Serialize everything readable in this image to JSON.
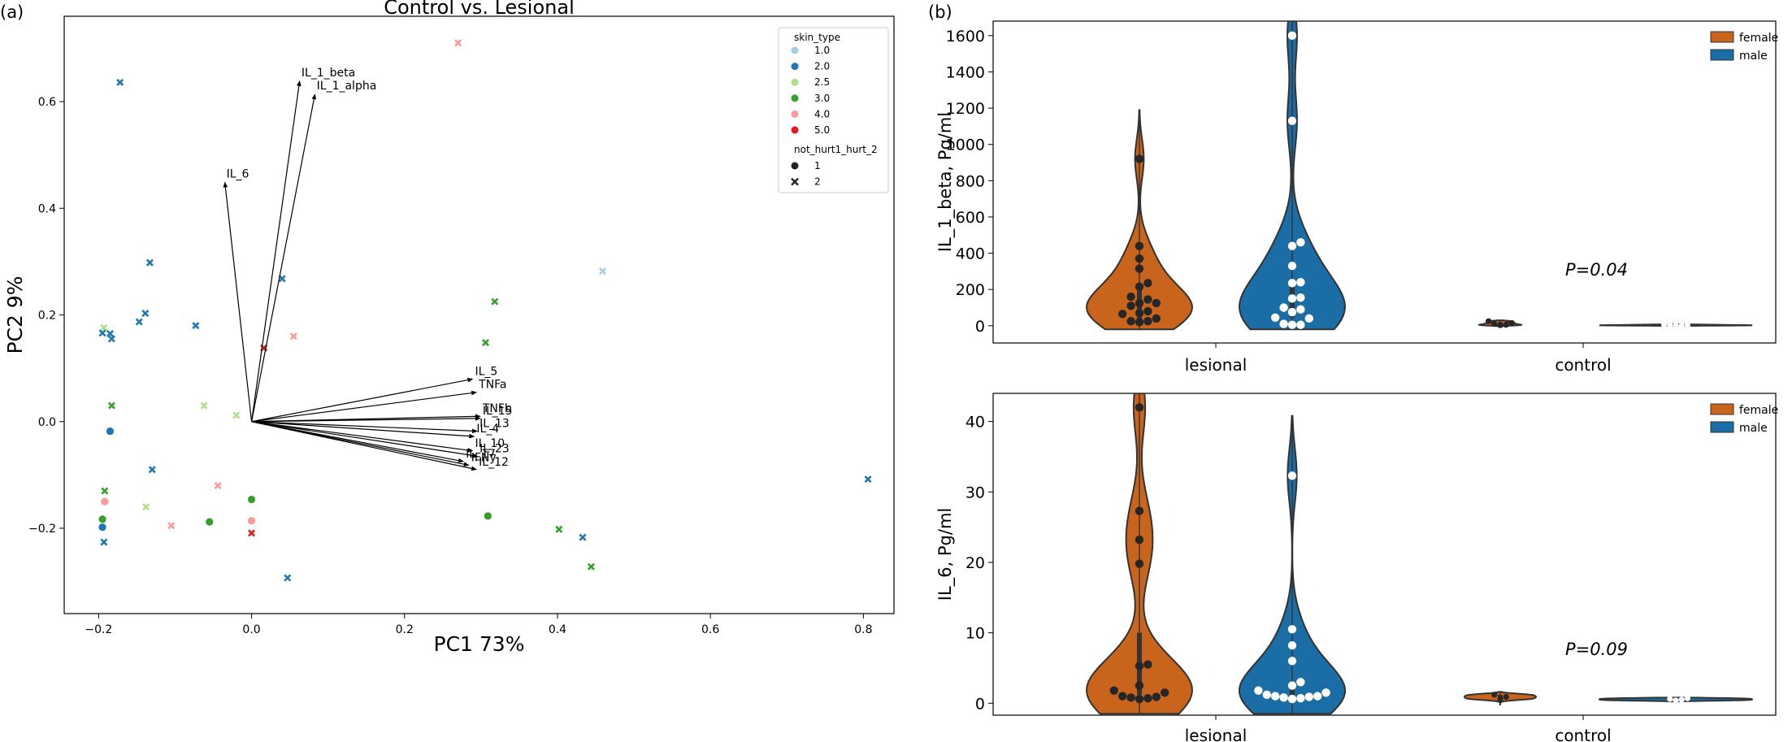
{
  "figure": {
    "panel_a_label": "(a)",
    "panel_b_label": "(b)"
  },
  "colors": {
    "skin_1.0": "#a6cee3",
    "skin_2.0": "#1f78b4",
    "skin_2.5": "#b2df8a",
    "skin_3.0": "#33a02c",
    "skin_4.0": "#fb9a99",
    "skin_5.0": "#e31a1c",
    "female": "#c8641c",
    "male": "#1b6ea5"
  },
  "chart_data": [
    {
      "type": "scatter",
      "title": "Control vs. Lesional",
      "xlabel": "PC1 73%",
      "ylabel": "PC2 9%",
      "xlim": [
        -0.245,
        0.84
      ],
      "ylim": [
        -0.36,
        0.76
      ],
      "xticks": [
        -0.2,
        0.0,
        0.2,
        0.4,
        0.6,
        0.8
      ],
      "xtick_labels": [
        "−0.2",
        "0.0",
        "0.2",
        "0.4",
        "0.6",
        "0.8"
      ],
      "yticks": [
        -0.2,
        0.0,
        0.2,
        0.4,
        0.6
      ],
      "ytick_labels": [
        "−0.2",
        "0.0",
        "0.2",
        "0.4",
        "0.6"
      ],
      "grid": false,
      "legend": {
        "placement": "top-right",
        "hue_title": "skin_type",
        "hue_items": [
          "1.0",
          "2.0",
          "2.5",
          "3.0",
          "4.0",
          "5.0"
        ],
        "style_title": "not_hurt1_hurt_2",
        "style_items": [
          {
            "label": "1",
            "marker": "circle"
          },
          {
            "label": "2",
            "marker": "x"
          }
        ]
      },
      "points": [
        {
          "x": -0.172,
          "y": 0.636,
          "skin": "2.0",
          "m": "x"
        },
        {
          "x": 0.27,
          "y": 0.71,
          "skin": "4.0",
          "m": "x"
        },
        {
          "x": -0.133,
          "y": 0.298,
          "skin": "2.0",
          "m": "x"
        },
        {
          "x": 0.04,
          "y": 0.268,
          "skin": "2.0",
          "m": "x"
        },
        {
          "x": 0.459,
          "y": 0.282,
          "skin": "1.0",
          "m": "x"
        },
        {
          "x": 0.318,
          "y": 0.225,
          "skin": "3.0",
          "m": "x"
        },
        {
          "x": -0.139,
          "y": 0.203,
          "skin": "2.0",
          "m": "x"
        },
        {
          "x": -0.147,
          "y": 0.187,
          "skin": "2.0",
          "m": "x"
        },
        {
          "x": -0.073,
          "y": 0.18,
          "skin": "2.0",
          "m": "x"
        },
        {
          "x": -0.193,
          "y": 0.176,
          "skin": "2.5",
          "m": "x"
        },
        {
          "x": -0.195,
          "y": 0.166,
          "skin": "2.0",
          "m": "x"
        },
        {
          "x": -0.185,
          "y": 0.165,
          "skin": "2.0",
          "m": "x"
        },
        {
          "x": -0.183,
          "y": 0.155,
          "skin": "2.0",
          "m": "x"
        },
        {
          "x": 0.055,
          "y": 0.16,
          "skin": "4.0",
          "m": "x"
        },
        {
          "x": 0.306,
          "y": 0.148,
          "skin": "3.0",
          "m": "x"
        },
        {
          "x": 0.016,
          "y": 0.138,
          "skin": "5.0",
          "m": "x"
        },
        {
          "x": -0.183,
          "y": 0.03,
          "skin": "3.0",
          "m": "x"
        },
        {
          "x": -0.062,
          "y": 0.03,
          "skin": "2.5",
          "m": "x"
        },
        {
          "x": -0.02,
          "y": 0.012,
          "skin": "2.5",
          "m": "x"
        },
        {
          "x": -0.185,
          "y": -0.018,
          "skin": "2.0",
          "m": "o"
        },
        {
          "x": -0.13,
          "y": -0.09,
          "skin": "2.0",
          "m": "x"
        },
        {
          "x": -0.044,
          "y": -0.12,
          "skin": "4.0",
          "m": "x"
        },
        {
          "x": -0.192,
          "y": -0.13,
          "skin": "3.0",
          "m": "x"
        },
        {
          "x": 0.0,
          "y": -0.146,
          "skin": "3.0",
          "m": "o"
        },
        {
          "x": -0.192,
          "y": -0.15,
          "skin": "4.0",
          "m": "o"
        },
        {
          "x": -0.138,
          "y": -0.16,
          "skin": "2.5",
          "m": "x"
        },
        {
          "x": 0.309,
          "y": -0.177,
          "skin": "3.0",
          "m": "o"
        },
        {
          "x": -0.195,
          "y": -0.183,
          "skin": "3.0",
          "m": "o"
        },
        {
          "x": -0.055,
          "y": -0.188,
          "skin": "3.0",
          "m": "o"
        },
        {
          "x": 0.0,
          "y": -0.186,
          "skin": "4.0",
          "m": "o"
        },
        {
          "x": -0.105,
          "y": -0.195,
          "skin": "4.0",
          "m": "x"
        },
        {
          "x": -0.195,
          "y": -0.198,
          "skin": "2.0",
          "m": "o"
        },
        {
          "x": 0.402,
          "y": -0.202,
          "skin": "3.0",
          "m": "x"
        },
        {
          "x": 0.0,
          "y": -0.209,
          "skin": "5.0",
          "m": "x"
        },
        {
          "x": 0.433,
          "y": -0.217,
          "skin": "2.0",
          "m": "x"
        },
        {
          "x": -0.193,
          "y": -0.226,
          "skin": "2.0",
          "m": "x"
        },
        {
          "x": 0.444,
          "y": -0.272,
          "skin": "3.0",
          "m": "x"
        },
        {
          "x": 0.047,
          "y": -0.293,
          "skin": "2.0",
          "m": "x"
        },
        {
          "x": 0.806,
          "y": -0.108,
          "skin": "2.0",
          "m": "x"
        }
      ],
      "loadings": [
        {
          "name": "IL_1_beta",
          "x": 0.063,
          "y": 0.64
        },
        {
          "name": "IL_1_alpha",
          "x": 0.083,
          "y": 0.615
        },
        {
          "name": "IL_6",
          "x": -0.035,
          "y": 0.45
        },
        {
          "name": "IL_5",
          "x": 0.29,
          "y": 0.08
        },
        {
          "name": "TNFa",
          "x": 0.295,
          "y": 0.055
        },
        {
          "name": "TNFb",
          "x": 0.3,
          "y": 0.01
        },
        {
          "name": "IL_15",
          "x": 0.3,
          "y": 0.006
        },
        {
          "name": "IL_13",
          "x": 0.296,
          "y": -0.018
        },
        {
          "name": "IL_4",
          "x": 0.292,
          "y": -0.028
        },
        {
          "name": "IL_10",
          "x": 0.29,
          "y": -0.055
        },
        {
          "name": "IL_23",
          "x": 0.296,
          "y": -0.065
        },
        {
          "name": "IL_17",
          "x": 0.278,
          "y": -0.075
        },
        {
          "name": "IFNy",
          "x": 0.285,
          "y": -0.082
        },
        {
          "name": "IL_12",
          "x": 0.295,
          "y": -0.09
        }
      ]
    },
    {
      "type": "violin",
      "ylabel": "IL_1_beta, Pg/ml",
      "categories": [
        "lesional",
        "control"
      ],
      "ylim": [
        -95,
        1680
      ],
      "yticks": [
        0,
        200,
        400,
        600,
        800,
        1000,
        1200,
        1400,
        1600
      ],
      "annotation": "P=0.04",
      "legend": {
        "placement": "top-right",
        "items": [
          "female",
          "male"
        ]
      },
      "series": [
        {
          "name": "female",
          "category": "lesional",
          "range": [
            -20,
            1190
          ],
          "box": [
            30,
            200
          ],
          "points": [
            920,
            440,
            370,
            315,
            235,
            215,
            160,
            145,
            125,
            125,
            110,
            80,
            70,
            65,
            40,
            25,
            25,
            20
          ]
        },
        {
          "name": "male",
          "category": "lesional",
          "range": [
            -20,
            1680
          ],
          "box": [
            45,
            250
          ],
          "points": [
            1600,
            1130,
            460,
            440,
            330,
            240,
            235,
            155,
            150,
            100,
            90,
            75,
            45,
            40,
            10,
            5,
            5
          ]
        },
        {
          "name": "female",
          "category": "control",
          "range": [
            -5,
            30
          ],
          "box": [
            0,
            20
          ],
          "points": [
            25,
            15,
            10,
            5,
            3
          ]
        },
        {
          "name": "male",
          "category": "control",
          "range": [
            -3,
            10
          ],
          "box": [
            0,
            5
          ],
          "points": [
            6,
            4,
            3,
            2,
            1
          ]
        }
      ]
    },
    {
      "type": "violin",
      "ylabel": "IL_6, Pg/ml",
      "categories": [
        "lesional",
        "control"
      ],
      "ylim": [
        -1.7,
        44
      ],
      "yticks": [
        0,
        10,
        20,
        30,
        40
      ],
      "annotation": "P=0.09",
      "legend": {
        "placement": "top-right",
        "items": [
          "female",
          "male"
        ]
      },
      "series": [
        {
          "name": "female",
          "category": "lesional",
          "range": [
            -1.5,
            44
          ],
          "box": [
            1.2,
            10
          ],
          "points": [
            42,
            27.3,
            23.2,
            19.8,
            5.5,
            5.3,
            2.5,
            1.8,
            1.5,
            1.0,
            0.9,
            0.8,
            0.7,
            0.6
          ]
        },
        {
          "name": "male",
          "category": "lesional",
          "range": [
            -1.5,
            40.8
          ],
          "box": [
            0.9,
            2.5
          ],
          "points": [
            32.3,
            10.5,
            8.2,
            6.0,
            3.0,
            2.5,
            1.8,
            1.5,
            1.2,
            1.0,
            1.0,
            0.9,
            0.8,
            0.7,
            0.6
          ]
        },
        {
          "name": "female",
          "category": "control",
          "range": [
            -0.3,
            1.6
          ],
          "box": [
            0.3,
            1.2
          ],
          "points": [
            1.2,
            0.9,
            0.6
          ]
        },
        {
          "name": "male",
          "category": "control",
          "range": [
            0.0,
            0.8
          ],
          "box": [
            0.3,
            0.6
          ],
          "points": [
            0.7,
            0.6,
            0.5,
            0.4
          ]
        }
      ]
    }
  ]
}
